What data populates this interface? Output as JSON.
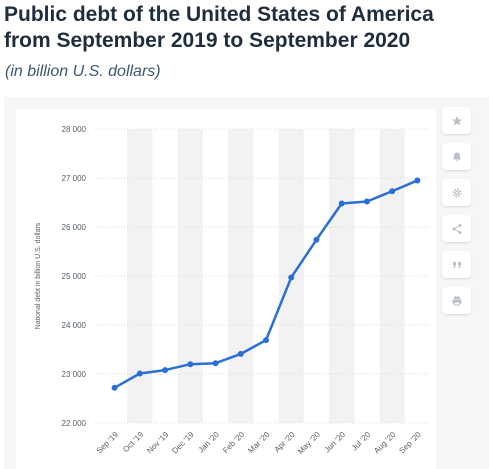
{
  "header": {
    "title": "Public debt of the United States of America from September 2019 to September 2020",
    "subtitle": "(in billion U.S. dollars)"
  },
  "toolbar": {
    "buttons": [
      {
        "icon": "star-icon",
        "name": "favorite-button"
      },
      {
        "icon": "bell-icon",
        "name": "notification-button"
      },
      {
        "icon": "gear-icon",
        "name": "settings-button"
      },
      {
        "icon": "share-icon",
        "name": "share-button"
      },
      {
        "icon": "quote-icon",
        "name": "cite-button"
      },
      {
        "icon": "print-icon",
        "name": "print-button"
      }
    ]
  },
  "colors": {
    "line": "#2a6fd6",
    "band": "#f2f2f2",
    "grid": "#d7dbe0"
  },
  "chart_data": {
    "type": "line",
    "categories": [
      "Sep '19",
      "Oct '19",
      "Nov '19",
      "Dec '19",
      "Jan '20",
      "Feb '20",
      "Mar '20",
      "Apr '20",
      "May '20",
      "Jun '20",
      "Jul '20",
      "Aug '20",
      "Sep '20"
    ],
    "values": [
      22720,
      23010,
      23080,
      23200,
      23220,
      23410,
      23690,
      24970,
      25740,
      26480,
      26520,
      26730,
      26950
    ],
    "ylabel": "National debt in billion U.S. dollars",
    "ylim": [
      22000,
      28000
    ],
    "yticks": [
      22000,
      23000,
      24000,
      25000,
      26000,
      27000,
      28000
    ],
    "ytick_labels": [
      "22 000",
      "23 000",
      "24 000",
      "25 000",
      "26 000",
      "27 000",
      "28 000"
    ],
    "grid": true,
    "legend": "none"
  }
}
